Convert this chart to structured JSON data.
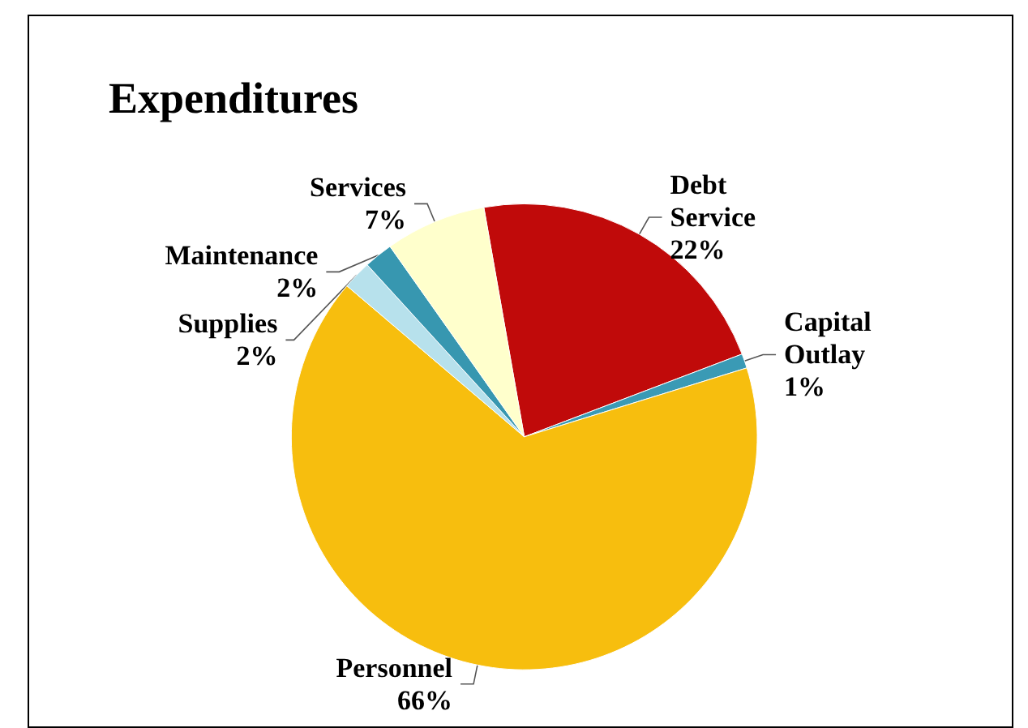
{
  "chart_data": {
    "type": "pie",
    "title": "Expenditures",
    "categories": [
      "Debt Service",
      "Capital Outlay",
      "Personnel",
      "Supplies",
      "Maintenance",
      "Services"
    ],
    "values": [
      22,
      1,
      66,
      2,
      2,
      7
    ],
    "colors": [
      "#c00a0a",
      "#3a9ab5",
      "#f7be0e",
      "#b7e1ec",
      "#3797b0",
      "#ffffcc"
    ],
    "value_labels": [
      "22%",
      "1%",
      "66%",
      "2%",
      "2%",
      "7%"
    ],
    "data_labels": true,
    "legend": false
  }
}
